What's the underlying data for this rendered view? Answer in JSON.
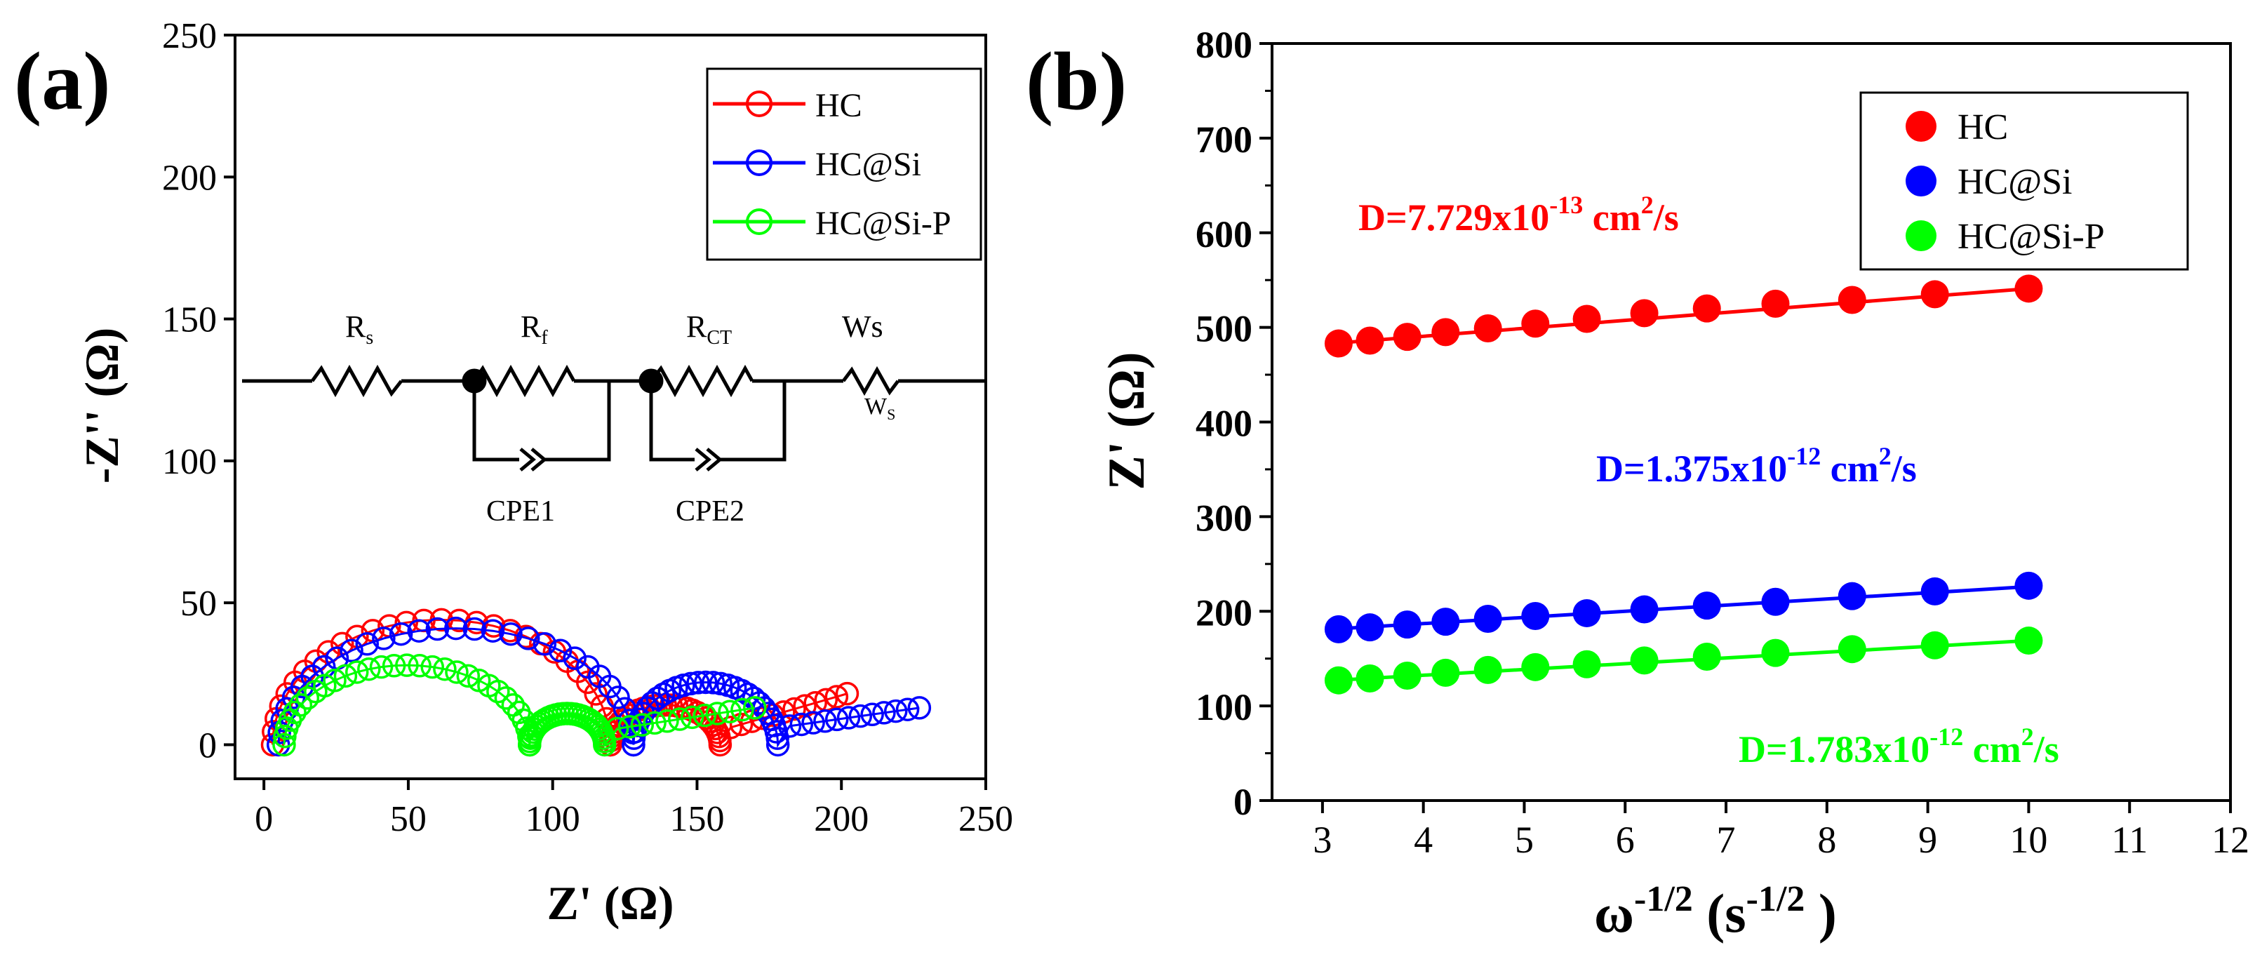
{
  "chart_data": [
    {
      "type": "scatter",
      "panel_label": "(a)",
      "xlabel": "Z' (Ω)",
      "ylabel": "-Z'' (Ω)",
      "xlim": [
        -10,
        250
      ],
      "ylim": [
        -12,
        250
      ],
      "xticks": [
        0,
        50,
        100,
        150,
        200,
        250
      ],
      "yticks": [
        0,
        50,
        100,
        150,
        200,
        250
      ],
      "legend": {
        "placement": "top-right",
        "entries": [
          "HC",
          "HC@Si",
          "HC@Si-P"
        ]
      },
      "series": [
        {
          "name": "HC",
          "color": "#ff0000",
          "marker": "open-circle",
          "arcs": [
            {
              "x1": 3,
              "x2": 120,
              "h": 44
            },
            {
              "x1": 120,
              "x2": 158,
              "h": 14
            }
          ],
          "tail": {
            "from": [
              158,
              5
            ],
            "to": [
              202,
              18
            ]
          }
        },
        {
          "name": "HC@Si",
          "color": "#0000ff",
          "marker": "open-circle",
          "arcs": [
            {
              "x1": 5,
              "x2": 128,
              "h": 41
            },
            {
              "x1": 128,
              "x2": 178,
              "h": 22
            }
          ],
          "tail": {
            "from": [
              178,
              6
            ],
            "to": [
              227,
              13
            ]
          }
        },
        {
          "name": "HC@Si-P",
          "color": "#00ff00",
          "marker": "open-circle",
          "arcs": [
            {
              "x1": 7,
              "x2": 92,
              "h": 28
            },
            {
              "x1": 92,
              "x2": 118,
              "h": 11
            }
          ],
          "tail": {
            "from": [
              118,
              5
            ],
            "to": [
              170,
              13
            ]
          }
        }
      ],
      "circuit": {
        "elements": [
          "Rs",
          "Rf",
          "RCT",
          "Ws"
        ],
        "labels": {
          "rs": "R",
          "rs_sub": "s",
          "rf": "R",
          "rf_sub": "f",
          "rct": "R",
          "rct_sub": "CT",
          "ws": "Ws",
          "ws_small": "W",
          "ws_small_sub": "S",
          "cpe1": "CPE1",
          "cpe2": "CPE2"
        }
      }
    },
    {
      "type": "scatter",
      "panel_label": "(b)",
      "xlabel": "ω",
      "xlabel_sup": "-1/2",
      "xlabel_unit": " (s",
      "xlabel_unit_sup": "-1/2",
      "xlabel_close": " )",
      "ylabel": "Z' (Ω)",
      "xlim": [
        2.5,
        12
      ],
      "ylim": [
        0,
        800
      ],
      "xticks": [
        3,
        4,
        5,
        6,
        7,
        8,
        9,
        10,
        11,
        12
      ],
      "yticks": [
        0,
        100,
        200,
        300,
        400,
        500,
        600,
        700,
        800
      ],
      "legend": {
        "placement": "top-right",
        "entries": [
          "HC",
          "HC@Si",
          "HC@Si-P"
        ]
      },
      "x": [
        3.16,
        3.47,
        3.84,
        4.22,
        4.64,
        5.11,
        5.62,
        6.19,
        6.81,
        7.49,
        8.25,
        9.07,
        10.0
      ],
      "series": [
        {
          "name": "HC",
          "color": "#ff0000",
          "values": [
            483,
            486,
            490,
            495,
            499,
            504,
            509,
            515,
            520,
            525,
            529,
            535,
            541
          ],
          "fit": {
            "slope": 8.4,
            "intercept": 457
          }
        },
        {
          "name": "HC@Si",
          "color": "#0000ff",
          "values": [
            181,
            183,
            186,
            189,
            192,
            195,
            198,
            202,
            206,
            210,
            216,
            221,
            227
          ],
          "fit": {
            "slope": 6.5,
            "intercept": 161
          }
        },
        {
          "name": "HC@Si-P",
          "color": "#00ff00",
          "values": [
            127,
            129,
            132,
            135,
            138,
            141,
            144,
            148,
            152,
            156,
            160,
            164,
            169
          ],
          "fit": {
            "slope": 6.1,
            "intercept": 108
          }
        }
      ],
      "annotations": [
        {
          "series": "HC",
          "prefix": "D=7.729x10",
          "exp": "-13",
          "unit": " cm",
          "unit_exp": "2",
          "suffix": "/s"
        },
        {
          "series": "HC@Si",
          "prefix": "D=1.375x10",
          "exp": "-12",
          "unit": " cm",
          "unit_exp": "2",
          "suffix": "/s"
        },
        {
          "series": "HC@Si-P",
          "prefix": "D=1.783x10",
          "exp": "-12",
          "unit": " cm",
          "unit_exp": "2",
          "suffix": "/s"
        }
      ]
    }
  ]
}
